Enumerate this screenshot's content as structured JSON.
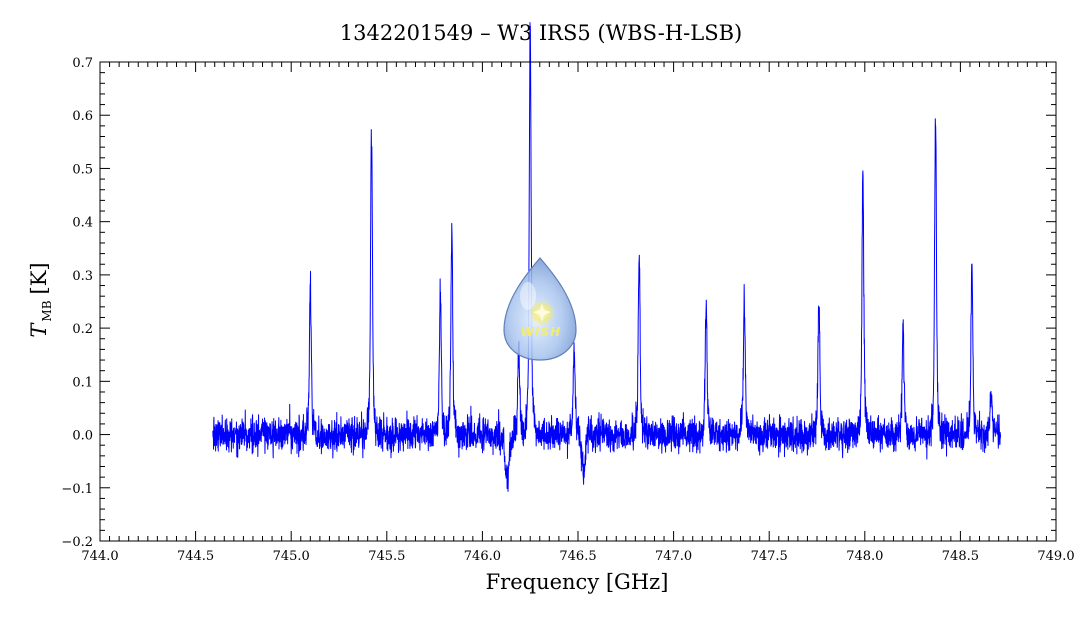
{
  "chart_data": {
    "type": "line",
    "title": "1342201549 – W3 IRS5 (WBS-H-LSB)",
    "xlabel": "Frequency [GHz]",
    "ylabel_main": "T",
    "ylabel_sub": "MB",
    "ylabel_unit": "[K]",
    "xlim": [
      744.0,
      749.0
    ],
    "ylim": [
      -0.2,
      0.7
    ],
    "x_ticks": [
      "744.0",
      "744.5",
      "745.0",
      "745.5",
      "746.0",
      "746.5",
      "747.0",
      "747.5",
      "748.0",
      "748.5",
      "749.0"
    ],
    "y_ticks": [
      "−0.2",
      "−0.1",
      "0.0",
      "0.1",
      "0.2",
      "0.3",
      "0.4",
      "0.5",
      "0.6",
      "0.7"
    ],
    "grid": false,
    "line_color": "#0000ff",
    "series": [
      {
        "spectrum_range": [
          744.59,
          748.71
        ],
        "noise_rms": 0.022,
        "lines": [
          {
            "freq": 745.1,
            "peak": 0.24
          },
          {
            "freq": 745.42,
            "peak": 0.5
          },
          {
            "freq": 745.78,
            "peak": 0.23
          },
          {
            "freq": 745.84,
            "peak": 0.33
          },
          {
            "freq": 746.19,
            "peak": 0.14
          },
          {
            "freq": 746.25,
            "peak": 0.67
          },
          {
            "freq": 746.48,
            "peak": 0.14
          },
          {
            "freq": 746.82,
            "peak": 0.29
          },
          {
            "freq": 747.17,
            "peak": 0.22
          },
          {
            "freq": 747.37,
            "peak": 0.22
          },
          {
            "freq": 747.76,
            "peak": 0.21
          },
          {
            "freq": 747.99,
            "peak": 0.43
          },
          {
            "freq": 748.2,
            "peak": 0.18
          },
          {
            "freq": 748.37,
            "peak": 0.51
          },
          {
            "freq": 748.56,
            "peak": 0.27
          },
          {
            "freq": 748.66,
            "peak": 0.07
          }
        ],
        "absorptions": [
          {
            "freq": 746.13,
            "depth": -0.08
          },
          {
            "freq": 746.53,
            "depth": -0.07
          }
        ]
      }
    ]
  },
  "logo": {
    "text": "WISH",
    "icon": "water-drop-icon",
    "drop_color": "#8fb4e6",
    "star_color": "#f4ec6a"
  }
}
